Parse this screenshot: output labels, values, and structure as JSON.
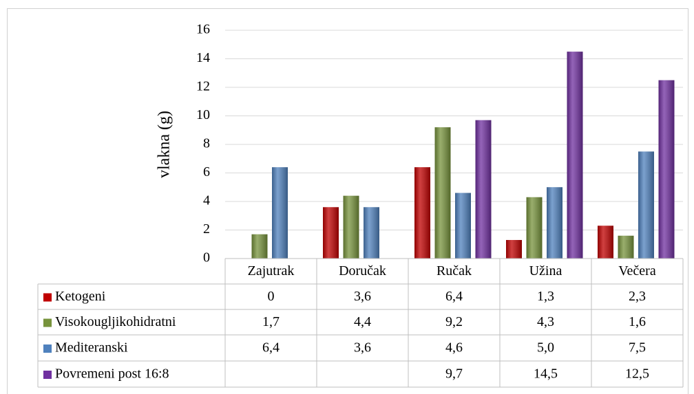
{
  "chart_data": {
    "type": "bar",
    "y_label": "vlakna (g)",
    "categories": [
      "Zajutrak",
      "Doručak",
      "Ručak",
      "Užina",
      "Večera"
    ],
    "series": [
      {
        "name": "Ketogeni",
        "color": "#c00000",
        "values": [
          0,
          3.6,
          6.4,
          1.3,
          2.3
        ],
        "value_labels": [
          "0",
          "3,6",
          "6,4",
          "1,3",
          "2,3"
        ]
      },
      {
        "name": "Visokougljikohidratni",
        "color": "#77933c",
        "values": [
          1.7,
          4.4,
          9.2,
          4.3,
          1.6
        ],
        "value_labels": [
          "1,7",
          "4,4",
          "9,2",
          "4,3",
          "1,6"
        ]
      },
      {
        "name": "Mediteranski",
        "color": "#4f81bd",
        "values": [
          6.4,
          3.6,
          4.6,
          5.0,
          7.5
        ],
        "value_labels": [
          "6,4",
          "3,6",
          "4,6",
          "5,0",
          "7,5"
        ]
      },
      {
        "name": "Povremeni post 16:8",
        "color": "#7030a0",
        "values": [
          null,
          null,
          9.7,
          14.5,
          12.5
        ],
        "value_labels": [
          null,
          null,
          "9,7",
          "14,5",
          "12,5"
        ]
      }
    ],
    "ylim": [
      0,
      16
    ],
    "yticks": [
      0,
      2,
      4,
      6,
      8,
      10,
      12,
      14,
      16
    ],
    "grid": true
  }
}
